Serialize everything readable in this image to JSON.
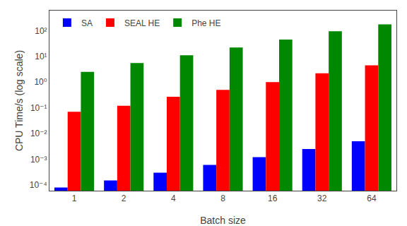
{
  "chart_data": {
    "type": "bar",
    "categories": [
      "1",
      "2",
      "4",
      "8",
      "16",
      "32",
      "64"
    ],
    "series": [
      {
        "name": "SA",
        "color": "#0000ff",
        "values": [
          8e-05,
          0.00015,
          0.0003,
          0.0006,
          0.0012,
          0.0025,
          0.005
        ]
      },
      {
        "name": "SEAL HE",
        "color": "#ff0000",
        "values": [
          0.07,
          0.12,
          0.27,
          0.5,
          1.0,
          2.2,
          4.5
        ]
      },
      {
        "name": "Phe HE",
        "color": "#008800",
        "values": [
          2.5,
          5.5,
          11.0,
          22.0,
          45.0,
          95.0,
          175.0
        ]
      }
    ],
    "xlabel": "Batch size",
    "ylabel": "CPU Time/s (log scale)",
    "log": "y",
    "ylim": [
      6e-05,
      600
    ],
    "yticks": [
      {
        "value": 0.0001,
        "label": "10⁻⁴"
      },
      {
        "value": 0.001,
        "label": "10⁻³"
      },
      {
        "value": 0.01,
        "label": "10⁻²"
      },
      {
        "value": 0.1,
        "label": "10⁻¹"
      },
      {
        "value": 1,
        "label": "10⁰"
      },
      {
        "value": 10,
        "label": "10¹"
      },
      {
        "value": 100,
        "label": "10²"
      }
    ],
    "legend": "upper left",
    "grid": false
  }
}
